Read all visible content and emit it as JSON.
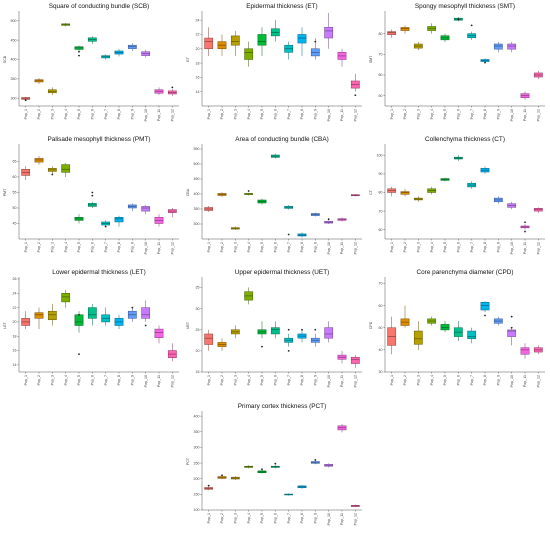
{
  "palette": [
    "#f8766d",
    "#e58700",
    "#c99800",
    "#a3a500",
    "#6bb100",
    "#00ba38",
    "#00bf7d",
    "#00c0af",
    "#00bcd8",
    "#00b0f6",
    "#619cff",
    "#b983ff",
    "#e76bf3",
    "#fd61d1",
    "#ff67a4"
  ],
  "panel_colors": [
    "#f8766d",
    "#de8c00",
    "#b79f00",
    "#7cae00",
    "#00ba38",
    "#00c08b",
    "#00bfc4",
    "#00b4f0",
    "#619cff",
    "#c77cff",
    "#f564e3",
    "#ff64b0"
  ],
  "categories": [
    "Pop_1",
    "Pop_2",
    "Pop_3",
    "Pop_4",
    "Pop_5",
    "Pop_6",
    "Pop_7",
    "Pop_8",
    "Pop_9",
    "Pop_10",
    "Pop_11",
    "Pop_12"
  ],
  "chart_data": [
    {
      "type": "box",
      "title": "Square of conducting bundle (SCB)",
      "ylabel": "SCB",
      "ylim": [
        280,
        520
      ],
      "yticks": [
        300,
        350,
        400,
        450,
        500
      ],
      "boxes": [
        [
          295,
          297,
          300,
          302,
          304
        ],
        [
          337,
          342,
          345,
          348,
          352
        ],
        [
          308,
          314,
          318,
          322,
          328
        ],
        [
          485,
          488,
          490,
          492,
          494
        ],
        [
          420,
          426,
          430,
          433,
          436
        ],
        [
          440,
          447,
          452,
          456,
          460
        ],
        [
          400,
          404,
          407,
          410,
          413
        ],
        [
          408,
          414,
          418,
          422,
          427
        ],
        [
          422,
          428,
          433,
          437,
          442
        ],
        [
          405,
          410,
          415,
          420,
          425
        ],
        [
          308,
          313,
          318,
          322,
          328
        ],
        [
          306,
          311,
          315,
          319,
          324
        ]
      ],
      "outliers": [
        [
          0,
          295
        ],
        [
          4,
          410
        ],
        [
          4,
          420
        ],
        [
          11,
          328
        ]
      ]
    },
    {
      "type": "box",
      "title": "Epidermal thickness (ET)",
      "ylabel": "ET",
      "ylim": [
        12,
        25
      ],
      "yticks": [
        14,
        16,
        18,
        20,
        22,
        24
      ],
      "boxes": [
        [
          19,
          20,
          21,
          21.5,
          23
        ],
        [
          19,
          20,
          20.5,
          21,
          22
        ],
        [
          19,
          20.5,
          21,
          21.8,
          22.5
        ],
        [
          17.5,
          18.5,
          19.5,
          20,
          21
        ],
        [
          19,
          20.5,
          21,
          22,
          23
        ],
        [
          21,
          21.8,
          22.3,
          22.8,
          24
        ],
        [
          18.5,
          19.5,
          20,
          20.5,
          21
        ],
        [
          19,
          20.8,
          21.5,
          22,
          23
        ],
        [
          18.5,
          19,
          19.5,
          20,
          21.5
        ],
        [
          20,
          21.5,
          22.5,
          23,
          25
        ],
        [
          17.5,
          18.5,
          19,
          19.5,
          20
        ],
        [
          14,
          14.5,
          15,
          15.5,
          16.5
        ]
      ],
      "outliers": [
        [
          8,
          21
        ],
        [
          11,
          13.5
        ]
      ]
    },
    {
      "type": "box",
      "title": "Spongy mesophyll thickness (SMT)",
      "ylabel": "SMT",
      "ylim": [
        45,
        90
      ],
      "yticks": [
        50,
        60,
        70,
        80
      ],
      "boxes": [
        [
          78,
          79.5,
          80.5,
          81,
          82
        ],
        [
          80,
          81.5,
          82.5,
          83,
          84
        ],
        [
          72,
          73,
          74,
          75,
          76
        ],
        [
          80,
          81.5,
          82.5,
          83.5,
          85
        ],
        [
          76,
          77,
          78,
          79,
          80
        ],
        [
          86,
          86.5,
          87,
          87.5,
          88
        ],
        [
          77,
          78,
          79,
          80,
          81
        ],
        [
          66,
          66.5,
          67,
          67.5,
          68
        ],
        [
          71,
          72.5,
          74,
          75,
          76
        ],
        [
          71,
          72.5,
          74,
          75,
          76
        ],
        [
          48,
          49,
          50,
          51,
          52
        ],
        [
          58,
          59,
          60,
          61,
          62
        ]
      ],
      "outliers": [
        [
          5,
          87
        ],
        [
          6,
          84
        ],
        [
          7,
          66
        ]
      ]
    },
    {
      "type": "box",
      "title": "Palisade mesophyll thickness (PMT)",
      "ylabel": "PMT",
      "ylim": [
        40,
        70
      ],
      "yticks": [
        45,
        50,
        55,
        60,
        65
      ],
      "boxes": [
        [
          59,
          60.5,
          61.5,
          62.5,
          63.5
        ],
        [
          64,
          64.8,
          65.5,
          66,
          66.8
        ],
        [
          61,
          61.8,
          62.3,
          62.8,
          63.5
        ],
        [
          60,
          61.5,
          62.5,
          64,
          64.5
        ],
        [
          45,
          46,
          46.5,
          47,
          48
        ],
        [
          50,
          50.5,
          51,
          51.5,
          52
        ],
        [
          44,
          44.5,
          45,
          45.5,
          46
        ],
        [
          44,
          45.5,
          46.5,
          47,
          47.5
        ],
        [
          49,
          50,
          50.5,
          51,
          51.5
        ],
        [
          48,
          49,
          50,
          50.5,
          51
        ],
        [
          44,
          45,
          46,
          47,
          48
        ],
        [
          47,
          48.5,
          49,
          49.5,
          50
        ]
      ],
      "outliers": [
        [
          2,
          60.8
        ],
        [
          5,
          54
        ],
        [
          5,
          55
        ],
        [
          6,
          44
        ]
      ]
    },
    {
      "type": "box",
      "title": "Area of conducting bundle (CBA)",
      "ylabel": "CBA",
      "ylim": [
        250,
        560
      ],
      "yticks": [
        300,
        350,
        400,
        450,
        500,
        550
      ],
      "boxes": [
        [
          340,
          345,
          350,
          355,
          360
        ],
        [
          390,
          395,
          398,
          402,
          406
        ],
        [
          280,
          283,
          285,
          288,
          292
        ],
        [
          395,
          398,
          400,
          402,
          404
        ],
        [
          365,
          370,
          375,
          380,
          384
        ],
        [
          518,
          522,
          526,
          530,
          534
        ],
        [
          348,
          352,
          356,
          359,
          363
        ],
        [
          255,
          260,
          263,
          267,
          272
        ],
        [
          325,
          328,
          332,
          335,
          338
        ],
        [
          300,
          303,
          306,
          309,
          312
        ],
        [
          308,
          312,
          315,
          318,
          322
        ],
        [
          392,
          394,
          396,
          398,
          400
        ]
      ],
      "outliers": [
        [
          3,
          410
        ],
        [
          6,
          265
        ],
        [
          9,
          316
        ]
      ]
    },
    {
      "type": "box",
      "title": "Collenchyma thickness (CT)",
      "ylabel": "CT",
      "ylim": [
        55,
        105
      ],
      "yticks": [
        60,
        70,
        80,
        90,
        100
      ],
      "boxes": [
        [
          78,
          80,
          81,
          82,
          83
        ],
        [
          78,
          79,
          80,
          80.5,
          82
        ],
        [
          75,
          76,
          76.5,
          77,
          78
        ],
        [
          79,
          80,
          81,
          82,
          83
        ],
        [
          86,
          86.5,
          87,
          87.5,
          88
        ],
        [
          97,
          98,
          98.5,
          99,
          100
        ],
        [
          82,
          83,
          84,
          85,
          86
        ],
        [
          90,
          91,
          92,
          93,
          94
        ],
        [
          74,
          75,
          76,
          77,
          78
        ],
        [
          71,
          72,
          73,
          74,
          75
        ],
        [
          60,
          61,
          61.5,
          62,
          63
        ],
        [
          69,
          70,
          71,
          71.5,
          72
        ]
      ],
      "outliers": [
        [
          10,
          59
        ],
        [
          10,
          64
        ]
      ]
    },
    {
      "type": "box",
      "title": "Lower epidermal thickness (LET)",
      "ylabel": "LET",
      "ylim": [
        13,
        26
      ],
      "yticks": [
        14,
        16,
        18,
        20,
        22,
        24,
        26
      ],
      "boxes": [
        [
          19,
          19.5,
          20,
          20.5,
          21.5
        ],
        [
          19,
          20.5,
          21,
          21.3,
          22
        ],
        [
          19.5,
          20.3,
          21,
          21.5,
          22.5
        ],
        [
          22,
          22.8,
          23.5,
          24,
          24.5
        ],
        [
          18.5,
          19.5,
          20,
          21,
          21.5
        ],
        [
          19.5,
          20.5,
          21,
          22,
          22.5
        ],
        [
          19.5,
          20,
          20.5,
          21,
          22
        ],
        [
          19,
          19.5,
          20,
          20.5,
          21
        ],
        [
          20,
          20.5,
          21,
          21.5,
          22
        ],
        [
          20,
          20.5,
          21,
          22,
          23
        ],
        [
          17,
          17.8,
          18.5,
          19,
          19.5
        ],
        [
          14.5,
          15,
          15.5,
          16,
          17
        ]
      ],
      "outliers": [
        [
          4,
          15.5
        ],
        [
          4,
          21
        ],
        [
          8,
          22
        ],
        [
          9,
          19.5
        ]
      ]
    },
    {
      "type": "box",
      "title": "Upper epidermal thickness (UET)",
      "ylabel": "UET",
      "ylim": [
        15,
        37
      ],
      "yticks": [
        15,
        20,
        25,
        30,
        35
      ],
      "boxes": [
        [
          20,
          21.5,
          23,
          24,
          25
        ],
        [
          20,
          21,
          21.5,
          22,
          23
        ],
        [
          23,
          24,
          24.5,
          25,
          26
        ],
        [
          31,
          32,
          33,
          34,
          35
        ],
        [
          23,
          24,
          24.5,
          25,
          27
        ],
        [
          23,
          24,
          25,
          25.5,
          27
        ],
        [
          21,
          22,
          22.5,
          23,
          24
        ],
        [
          22,
          23,
          23.5,
          24,
          25
        ],
        [
          21,
          22,
          22.5,
          23,
          24
        ],
        [
          22,
          23,
          24,
          25.5,
          27
        ],
        [
          17,
          18,
          18.5,
          19,
          20
        ],
        [
          16,
          17,
          18,
          18.5,
          19
        ]
      ],
      "outliers": [
        [
          4,
          21
        ],
        [
          6,
          20
        ],
        [
          6,
          25
        ],
        [
          7,
          25
        ],
        [
          8,
          25
        ]
      ]
    },
    {
      "type": "box",
      "title": "Core parenchyma diameter (CPD)",
      "ylabel": "CPD",
      "ylim": [
        30,
        72
      ],
      "yticks": [
        30,
        40,
        50,
        60,
        70
      ],
      "boxes": [
        [
          38,
          42,
          46,
          50,
          55
        ],
        [
          50,
          51,
          52.5,
          54,
          60
        ],
        [
          40,
          42.5,
          45,
          48.5,
          53
        ],
        [
          51,
          52,
          53,
          54,
          55
        ],
        [
          48,
          49,
          50,
          51.5,
          53
        ],
        [
          44,
          46,
          48,
          50,
          53
        ],
        [
          43,
          45,
          46,
          48.5,
          50
        ],
        [
          57,
          58,
          60,
          61.5,
          62
        ],
        [
          51,
          52,
          53,
          54,
          55
        ],
        [
          42,
          46,
          48.5,
          49,
          50
        ],
        [
          36,
          38,
          40,
          41,
          43
        ],
        [
          38,
          39,
          40,
          41,
          42
        ]
      ],
      "outliers": [
        [
          7,
          55.5
        ],
        [
          9,
          50
        ],
        [
          9,
          55
        ]
      ]
    },
    {
      "type": "box",
      "title": "Primary cortex thickness (PCT)",
      "ylabel": "PCT",
      "ylim": [
        100,
        410
      ],
      "yticks": [
        100,
        150,
        200,
        250,
        300,
        350,
        400
      ],
      "boxes": [
        [
          163,
          166,
          169,
          172,
          175
        ],
        [
          198,
          201,
          204,
          207,
          210
        ],
        [
          196,
          199,
          202,
          205,
          208
        ],
        [
          233,
          236,
          238,
          240,
          243
        ],
        [
          216,
          219,
          222,
          225,
          228
        ],
        [
          233,
          236,
          238,
          240,
          243
        ],
        [
          146,
          148,
          150,
          151,
          153
        ],
        [
          168,
          171,
          174,
          177,
          180
        ],
        [
          246,
          249,
          252,
          255,
          258
        ],
        [
          236,
          240,
          243,
          246,
          249
        ],
        [
          348,
          356,
          363,
          369,
          375
        ],
        [
          109,
          111,
          113,
          115,
          117
        ]
      ],
      "outliers": [
        [
          0,
          178
        ],
        [
          1,
          211
        ],
        [
          4,
          230
        ],
        [
          5,
          248
        ],
        [
          8,
          260
        ]
      ]
    }
  ]
}
